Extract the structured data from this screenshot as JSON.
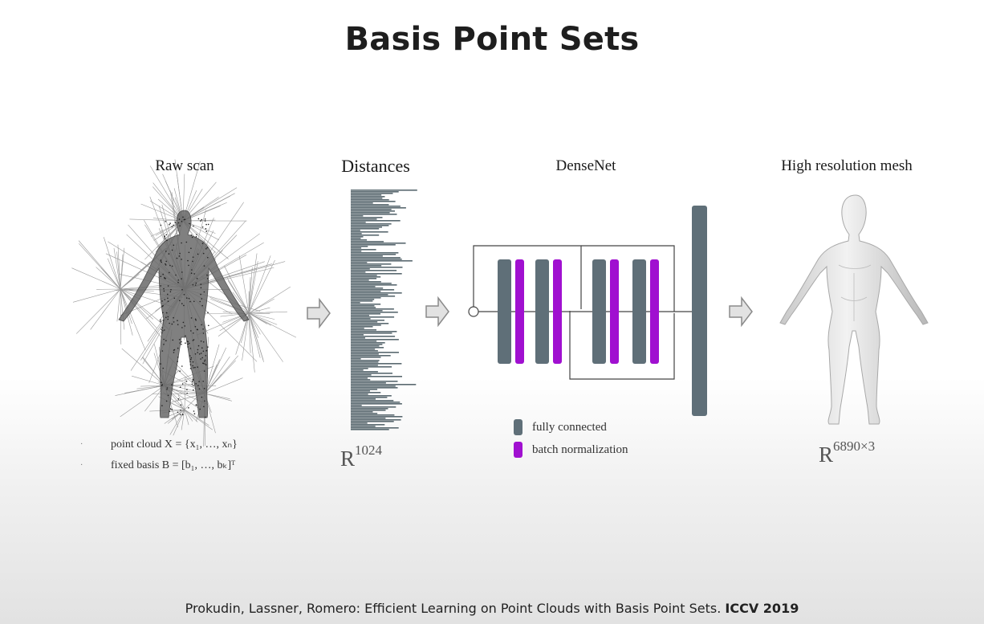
{
  "title": "Basis Point Sets",
  "stages": {
    "raw_scan": "Raw scan",
    "distances": "Distances",
    "densenet": "DenseNet",
    "mesh": "High resolution mesh"
  },
  "dimensions": {
    "distances_base": "R",
    "distances_exp": "1024",
    "mesh_base": "R",
    "mesh_exp": "6890×3"
  },
  "raw_scan_captions": [
    {
      "text": "point cloud X = {x₁, …, xₙ}"
    },
    {
      "text": "fixed basis B = [b₁, …, bₖ]ᵀ"
    }
  ],
  "legend": [
    {
      "label": "fully connected",
      "color": "#5f6f78"
    },
    {
      "label": "batch normalization",
      "color": "#a010d0"
    }
  ],
  "colors": {
    "fc_block": "#5f6f78",
    "bn_block": "#a010d0",
    "arrow_fill": "#e2e2e2",
    "arrow_stroke": "#8a8a8a"
  },
  "citation": {
    "text": "Prokudin, Lassner, Romero:  Efficient Learning on Point Clouds with Basis Point Sets.",
    "venue": "ICCV 2019"
  }
}
